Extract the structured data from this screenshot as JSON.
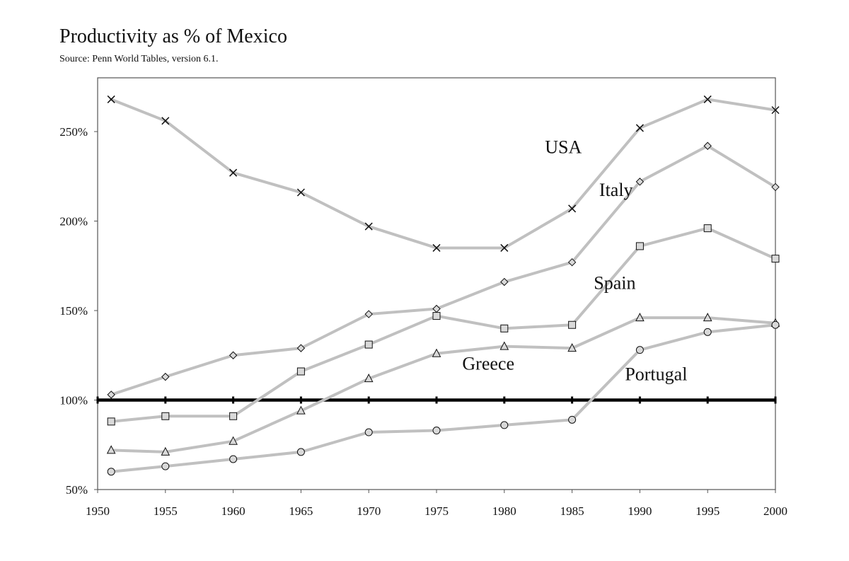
{
  "header": {
    "title": "Productivity as % of Mexico",
    "subtitle": "Source:  Penn World Tables, version 6.1."
  },
  "chart_data": {
    "type": "line",
    "title": "Productivity as % of Mexico",
    "subtitle": "Source:  Penn World Tables, version 6.1.",
    "xlabel": "",
    "ylabel": "",
    "xlim": [
      1950,
      2000
    ],
    "ylim": [
      50,
      280
    ],
    "x_ticks": [
      1950,
      1955,
      1960,
      1965,
      1970,
      1975,
      1980,
      1985,
      1990,
      1995,
      2000
    ],
    "x_tick_labels": [
      "1950",
      "1955",
      "1960",
      "1965",
      "1970",
      "1975",
      "1980",
      "1985",
      "1990",
      "1995",
      "2000"
    ],
    "y_ticks": [
      50,
      100,
      150,
      200,
      250
    ],
    "y_tick_labels": [
      "50%",
      "100%",
      "150%",
      "200%",
      "250%"
    ],
    "x": [
      1951,
      1955,
      1960,
      1965,
      1970,
      1975,
      1980,
      1985,
      1990,
      1995,
      2000
    ],
    "reference_line": {
      "value": 100
    },
    "grid": false,
    "legend": "none",
    "series": [
      {
        "name": "USA",
        "marker": "x",
        "values": [
          268,
          256,
          227,
          216,
          197,
          185,
          185,
          207,
          252,
          268,
          262
        ],
        "label_at": {
          "x": 1983,
          "y": 238
        }
      },
      {
        "name": "Italy",
        "marker": "diamond",
        "values": [
          103,
          113,
          125,
          129,
          148,
          151,
          166,
          177,
          222,
          242,
          219
        ],
        "label_at": {
          "x": 1987,
          "y": 214
        }
      },
      {
        "name": "Spain",
        "marker": "square",
        "values": [
          88,
          91,
          91,
          116,
          131,
          147,
          140,
          142,
          186,
          196,
          179
        ],
        "label_at": {
          "x": 1986.6,
          "y": 162
        }
      },
      {
        "name": "Greece",
        "marker": "triangle",
        "values": [
          72,
          71,
          77,
          94,
          112,
          126,
          130,
          129,
          146,
          146,
          143
        ],
        "label_at": {
          "x": 1976.9,
          "y": 117
        }
      },
      {
        "name": "Portugal",
        "marker": "circle",
        "values": [
          60,
          63,
          67,
          71,
          82,
          83,
          86,
          89,
          128,
          138,
          142
        ],
        "label_at": {
          "x": 1988.9,
          "y": 111
        }
      }
    ],
    "colors": {
      "line": "#c0c0c0",
      "marker_fill": "#d9d9d9",
      "marker_stroke": "#111111",
      "reference": "#000000",
      "frame": "#555555"
    }
  }
}
